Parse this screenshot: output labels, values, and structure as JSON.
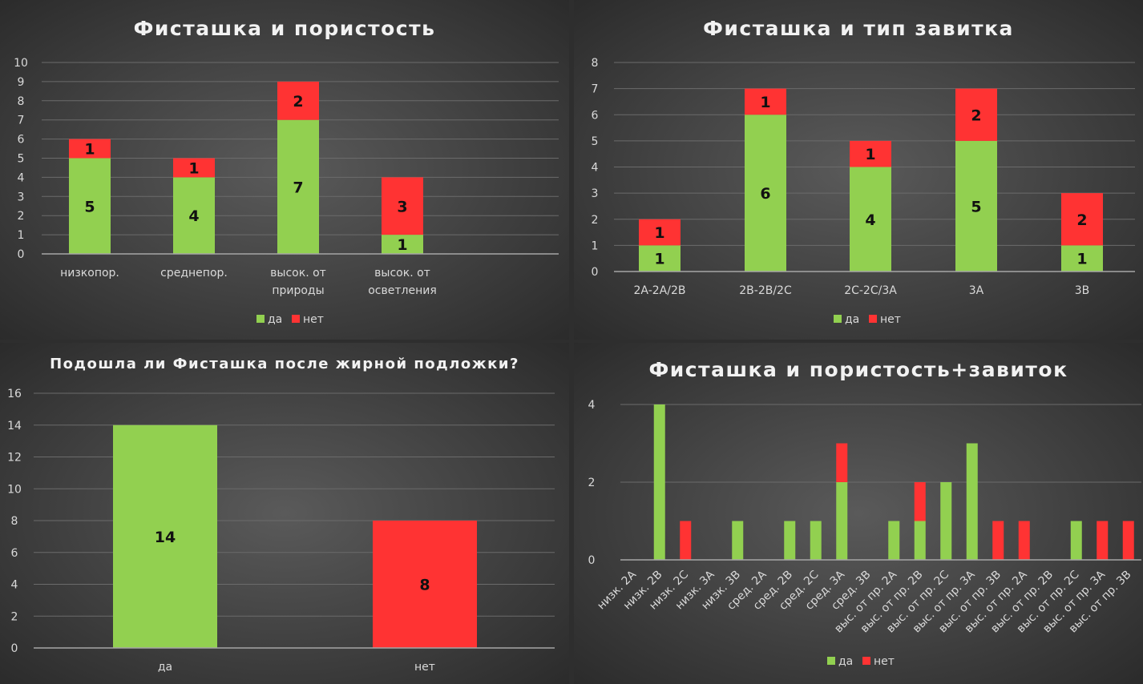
{
  "colors": {
    "yes": "#92d050",
    "no": "#ff3333"
  },
  "chart_data": [
    {
      "id": "c1",
      "type": "bar",
      "stacked": true,
      "title": "Фисташка и пористость",
      "categories": [
        [
          "низкопор."
        ],
        [
          "среднепор."
        ],
        [
          "высок. от",
          "природы"
        ],
        [
          "высок. от",
          "осветления"
        ]
      ],
      "series": [
        {
          "name": "да",
          "values": [
            5,
            4,
            7,
            1
          ]
        },
        {
          "name": "нет",
          "values": [
            1,
            1,
            2,
            3
          ]
        }
      ],
      "ylim": [
        0,
        10
      ],
      "yticks": [
        0,
        1,
        2,
        3,
        4,
        5,
        6,
        7,
        8,
        9,
        10
      ],
      "grid": true,
      "legend": "bottom",
      "data_labels": true
    },
    {
      "id": "c2",
      "type": "bar",
      "stacked": true,
      "title": "Фисташка и тип завитка",
      "categories": [
        [
          "2A-2A/2B"
        ],
        [
          "2B-2B/2C"
        ],
        [
          "2C-2C/3A"
        ],
        [
          "3A"
        ],
        [
          "3B"
        ]
      ],
      "series": [
        {
          "name": "да",
          "values": [
            1,
            6,
            4,
            5,
            1
          ]
        },
        {
          "name": "нет",
          "values": [
            1,
            1,
            1,
            2,
            2
          ]
        }
      ],
      "ylim": [
        0,
        8
      ],
      "yticks": [
        0,
        1,
        2,
        3,
        4,
        5,
        6,
        7,
        8
      ],
      "grid": true,
      "legend": "bottom",
      "data_labels": true
    },
    {
      "id": "c3",
      "type": "bar",
      "stacked": false,
      "title": "Подошла ли Фисташка после жирной подложки?",
      "categories": [
        [
          "да"
        ],
        [
          "нет"
        ]
      ],
      "values": [
        14,
        8
      ],
      "ylim": [
        0,
        16
      ],
      "yticks": [
        0,
        2,
        4,
        6,
        8,
        10,
        12,
        14,
        16
      ],
      "grid": true,
      "legend": "none",
      "data_labels": true
    },
    {
      "id": "c4",
      "type": "bar",
      "stacked": true,
      "title": "Фисташка и пористость+завиток",
      "categories": [
        "низк. 2A",
        "низк. 2B",
        "низк. 2C",
        "низк. 3A",
        "низк. 3B",
        "сред. 2A",
        "сред. 2B",
        "сред. 2C",
        "сред. 3A",
        "сред. 3B",
        "выс. от пр. 2A",
        "выс. от пр. 2B",
        "выс. от пр. 2C",
        "выс. от пр. 3A",
        "выс. от пр. 3B",
        "выс. от пр. 2A",
        "выс. от пр. 2B",
        "выс. от пр. 2C",
        "выс. от пр. 3A",
        "выс. от пр. 3B"
      ],
      "series": [
        {
          "name": "да",
          "values": [
            0,
            4,
            0,
            0,
            1,
            0,
            1,
            1,
            2,
            0,
            1,
            1,
            2,
            3,
            0,
            0,
            0,
            1,
            0,
            0
          ]
        },
        {
          "name": "нет",
          "values": [
            0,
            0,
            1,
            0,
            0,
            0,
            0,
            0,
            1,
            0,
            0,
            1,
            0,
            0,
            1,
            1,
            0,
            0,
            1,
            1
          ]
        }
      ],
      "ylim": [
        0,
        4
      ],
      "yticks": [
        0,
        2,
        4
      ],
      "grid": true,
      "legend": "bottom",
      "data_labels": false
    }
  ]
}
